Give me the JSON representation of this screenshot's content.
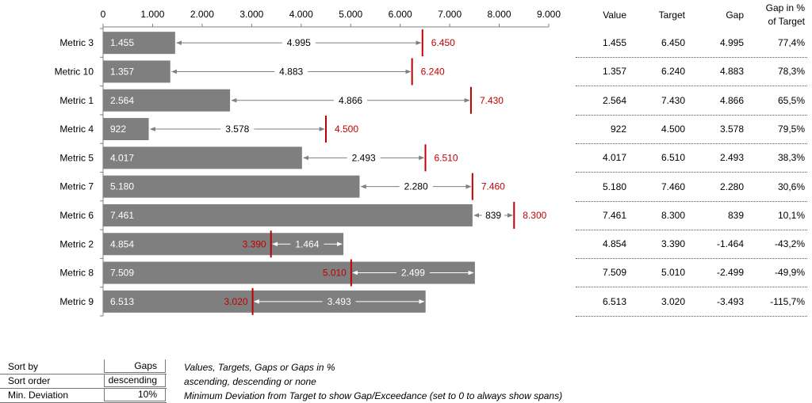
{
  "chart_data": {
    "type": "bar",
    "categories": [
      "Metric 3",
      "Metric 10",
      "Metric 1",
      "Metric 4",
      "Metric 5",
      "Metric 7",
      "Metric 6",
      "Metric 2",
      "Metric 8",
      "Metric 9"
    ],
    "values": [
      1455,
      1357,
      2564,
      922,
      4017,
      5180,
      7461,
      4854,
      7509,
      6513
    ],
    "targets": [
      6450,
      6240,
      7430,
      4500,
      6510,
      7460,
      8300,
      3390,
      5010,
      3020
    ],
    "gaps": [
      4995,
      4883,
      4866,
      3578,
      2493,
      2280,
      839,
      -1464,
      -2499,
      -3493
    ],
    "value_labels": [
      "1.455",
      "1.357",
      "2.564",
      "922",
      "4.017",
      "5.180",
      "7.461",
      "4.854",
      "7.509",
      "6.513"
    ],
    "target_labels": [
      "6.450",
      "6.240",
      "7.430",
      "4.500",
      "6.510",
      "7.460",
      "8.300",
      "3.390",
      "5.010",
      "3.020"
    ],
    "gap_labels": [
      "4.995",
      "4.883",
      "4.866",
      "3.578",
      "2.493",
      "2.280",
      "839",
      "1.464",
      "2.499",
      "3.493"
    ],
    "xlim": [
      0,
      9000
    ],
    "ticks": [
      0,
      1000,
      2000,
      3000,
      4000,
      5000,
      6000,
      7000,
      8000,
      9000
    ],
    "tick_labels": [
      "0",
      "1.000",
      "2.000",
      "3.000",
      "4.000",
      "5.000",
      "6.000",
      "7.000",
      "8.000",
      "9.000"
    ],
    "axis_position": "top",
    "grid": false,
    "colors": {
      "bar": "#7f7f7f",
      "target": "#c00000",
      "gap_arrow": "#7f7f7f",
      "gap_arrow_inside": "#ffffff"
    }
  },
  "table": {
    "headers": {
      "value": "Value",
      "target": "Target",
      "gap": "Gap",
      "gap_pct_line1": "Gap in %",
      "gap_pct_line2": "of Target"
    },
    "rows": [
      {
        "value": "1.455",
        "target": "6.450",
        "gap": "4.995",
        "gap_pct": "77,4%"
      },
      {
        "value": "1.357",
        "target": "6.240",
        "gap": "4.883",
        "gap_pct": "78,3%"
      },
      {
        "value": "2.564",
        "target": "7.430",
        "gap": "4.866",
        "gap_pct": "65,5%"
      },
      {
        "value": "922",
        "target": "4.500",
        "gap": "3.578",
        "gap_pct": "79,5%"
      },
      {
        "value": "4.017",
        "target": "6.510",
        "gap": "2.493",
        "gap_pct": "38,3%"
      },
      {
        "value": "5.180",
        "target": "7.460",
        "gap": "2.280",
        "gap_pct": "30,6%"
      },
      {
        "value": "7.461",
        "target": "8.300",
        "gap": "839",
        "gap_pct": "10,1%"
      },
      {
        "value": "4.854",
        "target": "3.390",
        "gap": "-1.464",
        "gap_pct": "-43,2%"
      },
      {
        "value": "7.509",
        "target": "5.010",
        "gap": "-2.499",
        "gap_pct": "-49,9%"
      },
      {
        "value": "6.513",
        "target": "3.020",
        "gap": "-3.493",
        "gap_pct": "-115,7%"
      }
    ]
  },
  "settings": {
    "sort_by": {
      "label": "Sort by",
      "value": "Gaps",
      "description": "Values, Targets, Gaps or Gaps in %"
    },
    "sort_order": {
      "label": "Sort order",
      "value": "descending",
      "description": "ascending, descending or none"
    },
    "min_deviation": {
      "label": "Min. Deviation",
      "value": "10%",
      "description": "Minimum Deviation from Target to show Gap/Exceedance (set to 0 to always show spans)"
    }
  }
}
